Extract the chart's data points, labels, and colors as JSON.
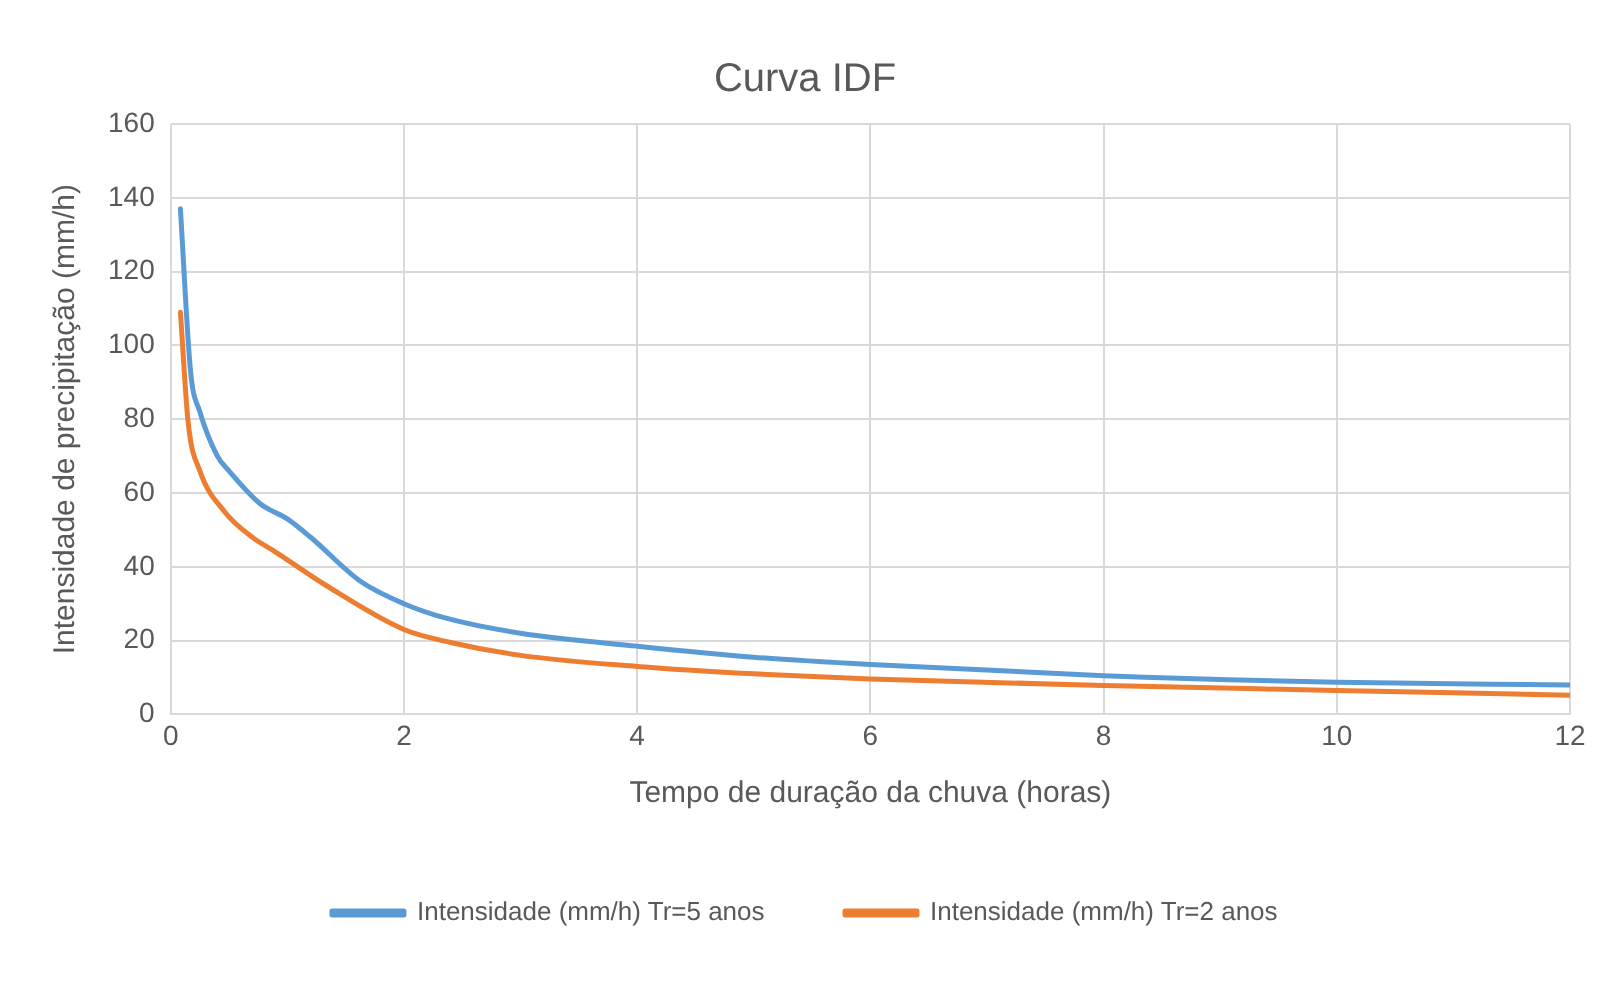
{
  "chart_data": {
    "type": "line",
    "title": "Curva IDF",
    "xlabel": "Tempo de duração da chuva (horas)",
    "ylabel": "Intensidade de precipitação (mm/h)",
    "xlim": [
      0,
      12
    ],
    "xticks": [
      0,
      2,
      4,
      6,
      8,
      10,
      12
    ],
    "ylim": [
      0,
      160
    ],
    "yticks": [
      0,
      20,
      40,
      60,
      80,
      100,
      120,
      140,
      160
    ],
    "grid": true,
    "legend": "bottom",
    "marker": "none",
    "line_style": "solid",
    "series": [
      {
        "name": "Intensidade (mm/h) Tr=5 anos",
        "color": "#5b9bd5",
        "x": [
          0.083,
          0.17,
          0.25,
          0.4,
          0.5,
          0.77,
          1,
          1.2,
          1.63,
          2,
          2.37,
          3,
          4,
          5,
          6,
          8,
          10,
          12
        ],
        "values": [
          137,
          93,
          82,
          70,
          66,
          57,
          53,
          48,
          36,
          30,
          26,
          22,
          18.5,
          15.5,
          13.5,
          10.5,
          8.7,
          8
        ]
      },
      {
        "name": "Intensidade (mm/h) Tr=2 anos",
        "color": "#ed7d31",
        "x": [
          0.083,
          0.15,
          0.25,
          0.46,
          0.7,
          0.9,
          1.33,
          2,
          2.4,
          3,
          4,
          5,
          6,
          8,
          10,
          12
        ],
        "values": [
          109,
          79,
          66,
          55,
          48,
          44,
          35,
          23,
          19.5,
          16,
          13,
          11,
          9.6,
          7.8,
          6.5,
          5.2
        ]
      }
    ]
  }
}
